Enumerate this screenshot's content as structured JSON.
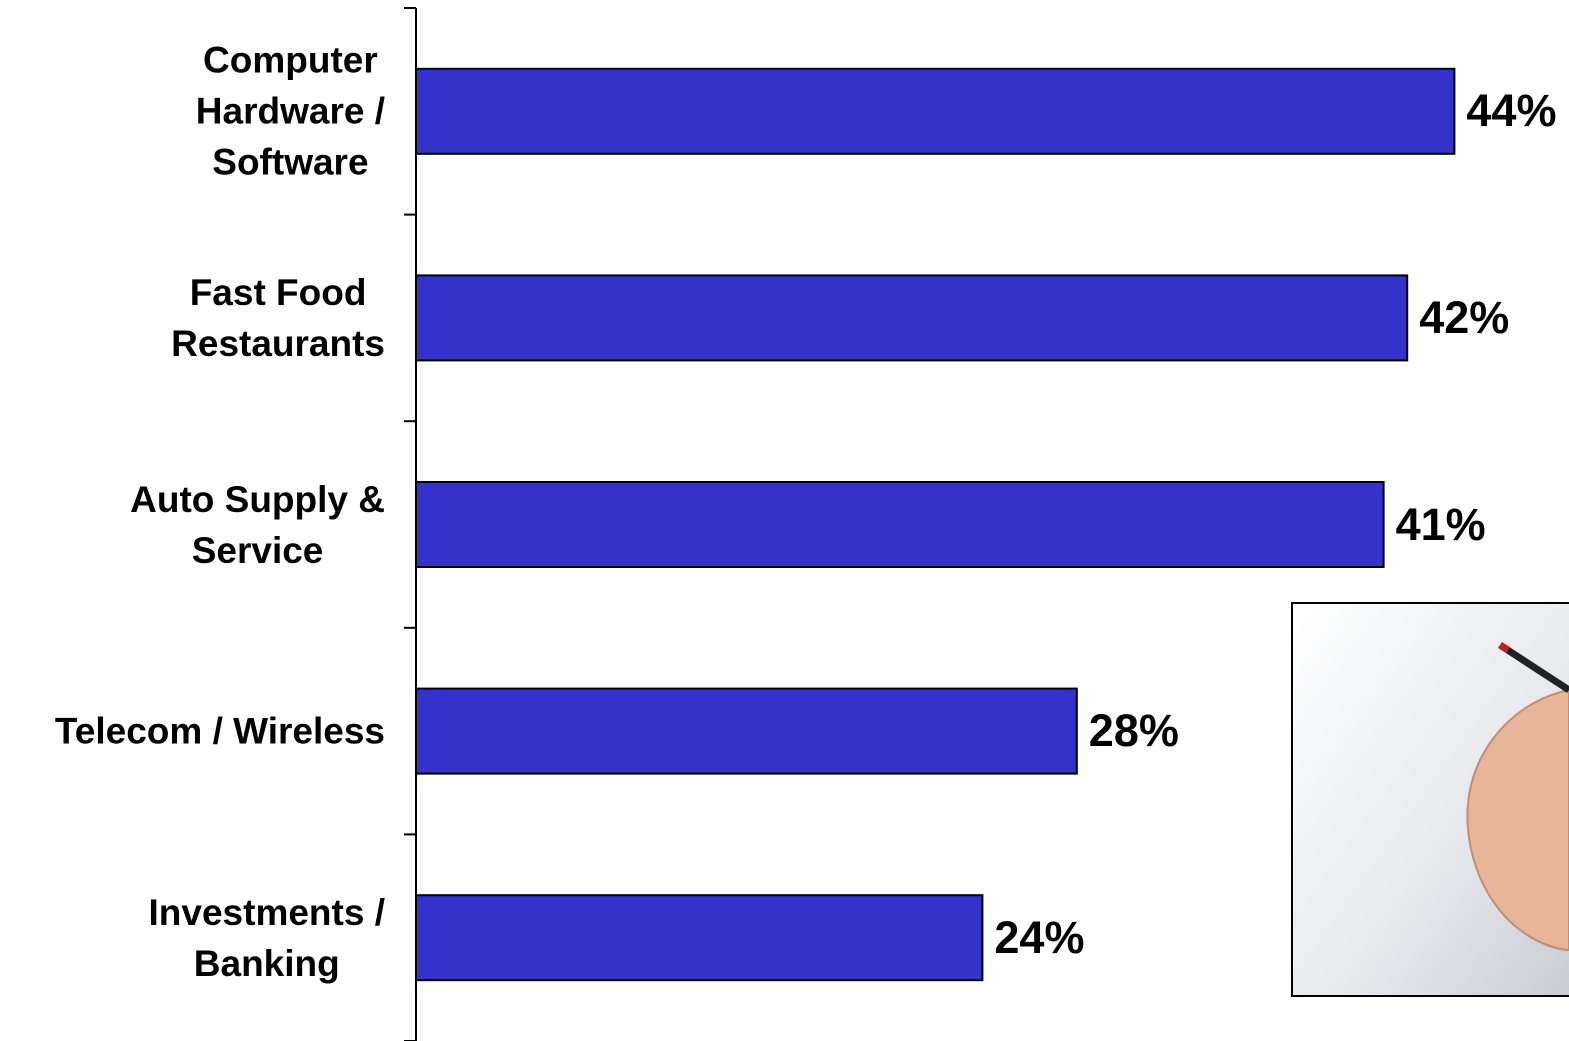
{
  "chart_data": {
    "type": "bar",
    "orientation": "horizontal",
    "categories": [
      "Computer\nHardware /\nSoftware",
      "Fast Food\nRestaurants",
      "Auto Supply &\nService",
      "Telecom / Wireless",
      "Investments /\nBanking"
    ],
    "values": [
      44,
      42,
      41,
      28,
      24
    ],
    "value_labels": [
      "44%",
      "42%",
      "41%",
      "28%",
      "24%"
    ],
    "color": "#3333cc"
  }
}
